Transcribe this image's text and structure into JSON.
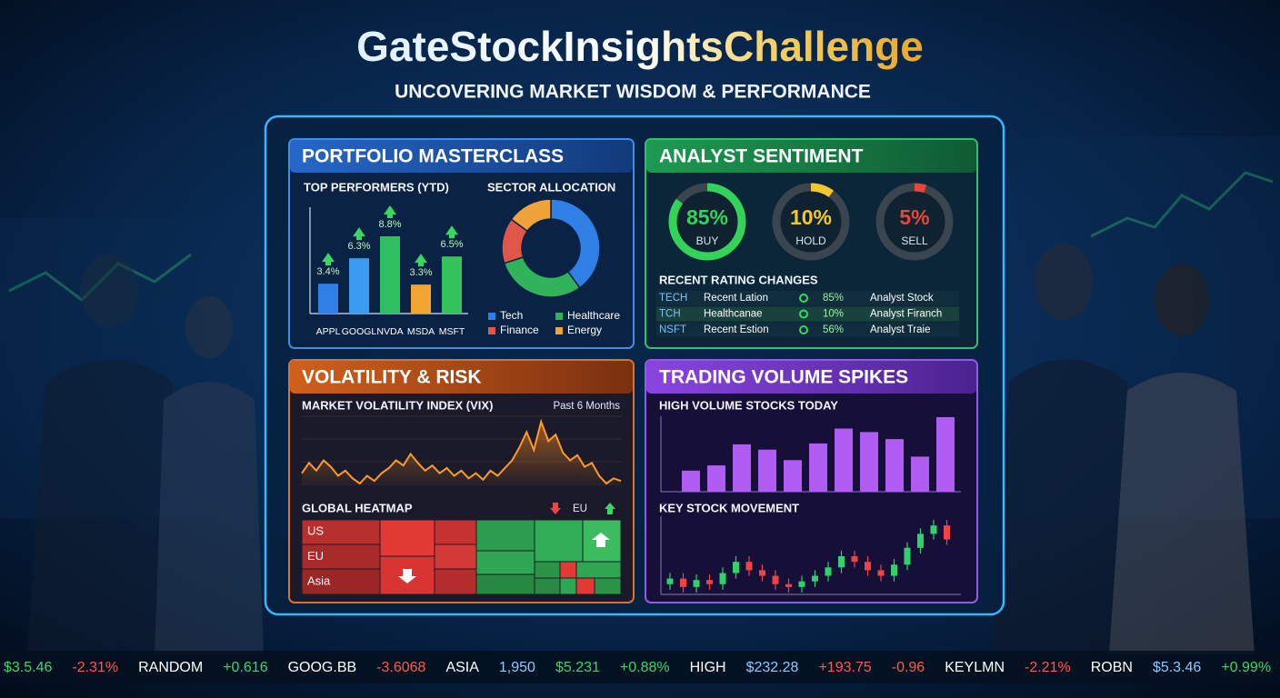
{
  "header": {
    "title": "GateStockInsightsChallenge",
    "subtitle": "UNCOVERING MARKET WISDOM & PERFORMANCE"
  },
  "portfolio": {
    "title": "PORTFOLIO MASTERCLASS",
    "performers": {
      "type": "bar",
      "title": "TOP PERFORMERS (YTD)",
      "categories": [
        "APPL",
        "GOOGL",
        "NVDA",
        "MSDA",
        "MSFT"
      ],
      "values": [
        3.4,
        6.3,
        8.8,
        3.3,
        6.5
      ],
      "value_labels": [
        "3.4%",
        "6.3%",
        "8.8%",
        "3.3%",
        "6.5%"
      ],
      "colors": [
        "#2f7fe6",
        "#3a9cf0",
        "#2fbf62",
        "#f2a531",
        "#35c45c"
      ]
    },
    "sectors": {
      "type": "pie",
      "title": "SECTOR ALLOCATION",
      "categories": [
        "Tech",
        "Healthcare",
        "Finance",
        "Energy"
      ],
      "values": [
        40,
        30,
        15,
        15
      ],
      "colors": [
        "#2f7fe6",
        "#31b35a",
        "#e0574a",
        "#f0a33a"
      ]
    }
  },
  "sentiment": {
    "title": "ANALYST SENTIMENT",
    "gauges": {
      "categories": [
        "BUY",
        "HOLD",
        "SELL"
      ],
      "values": [
        85,
        10,
        5
      ],
      "value_labels": [
        "85%",
        "10%",
        "5%"
      ],
      "colors": [
        "#33d35a",
        "#f2c832",
        "#e5483a"
      ]
    },
    "ratings": {
      "title": "RECENT RATING CHANGES",
      "rows": [
        [
          "TECH",
          "Recent Lation",
          "85%",
          "Analyst Stock"
        ],
        [
          "TCH",
          "Healthcanae",
          "10%",
          "Analyst Firanch"
        ],
        [
          "NSFT",
          "Recent Estion",
          "56%",
          "Analyst Traie"
        ]
      ]
    }
  },
  "volatility": {
    "title": "VOLATILITY & RISK",
    "vix": {
      "type": "line",
      "title": "MARKET VOLATILITY INDEX (VIX)",
      "period": "Past 6 Months",
      "color": "#ff9a2a",
      "values": [
        20,
        28,
        22,
        30,
        25,
        18,
        22,
        16,
        12,
        18,
        14,
        20,
        24,
        30,
        26,
        35,
        28,
        22,
        26,
        20,
        24,
        18,
        22,
        16,
        20,
        15,
        22,
        18,
        24,
        30,
        40,
        52,
        38,
        60,
        45,
        50,
        36,
        30,
        34,
        25,
        28,
        18,
        12,
        16,
        14
      ]
    },
    "heatmap": {
      "title": "GLOBAL HEATMAP",
      "legend_label": "EU",
      "regions": [
        "US",
        "EU",
        "Asia"
      ]
    }
  },
  "trading": {
    "title": "TRADING VOLUME SPIKES",
    "volume": {
      "type": "bar",
      "title": "HIGH VOLUME STOCKS TODAY",
      "color": "#b05cf2",
      "values": [
        24,
        30,
        54,
        48,
        36,
        55,
        72,
        68,
        60,
        40,
        85
      ]
    },
    "movement": {
      "type": "candlestick",
      "title": "KEY STOCK MOVEMENT",
      "open": [
        30,
        34,
        28,
        33,
        30,
        38,
        46,
        40,
        36,
        30,
        28,
        32,
        36,
        42,
        50,
        46,
        40,
        36,
        44,
        56,
        66,
        72
      ],
      "close": [
        34,
        28,
        33,
        30,
        38,
        46,
        40,
        36,
        30,
        28,
        32,
        36,
        42,
        50,
        46,
        40,
        36,
        44,
        56,
        66,
        72,
        62
      ],
      "high": [
        38,
        38,
        37,
        37,
        42,
        50,
        50,
        44,
        40,
        34,
        36,
        40,
        46,
        54,
        54,
        50,
        44,
        48,
        60,
        70,
        76,
        76
      ],
      "low": [
        26,
        24,
        24,
        26,
        26,
        34,
        36,
        32,
        26,
        24,
        24,
        28,
        32,
        38,
        42,
        36,
        32,
        32,
        40,
        52,
        62,
        58
      ],
      "up_color": "#2fd36a",
      "down_color": "#ef4444"
    }
  },
  "ticker": {
    "items": [
      {
        "text": "$3.5.46",
        "color": "#3fd36a"
      },
      {
        "text": "-2.31%",
        "color": "#ff5a4a"
      },
      {
        "text": "RANDOM",
        "color": "#ffffff"
      },
      {
        "text": "+0.616",
        "color": "#3fd36a"
      },
      {
        "text": "GOOG.BB",
        "color": "#ffffff"
      },
      {
        "text": "-3.6068",
        "color": "#ff5a4a"
      },
      {
        "text": "ASIA",
        "color": "#ffffff"
      },
      {
        "text": "1,950",
        "color": "#8fc8ff"
      },
      {
        "text": "$5.231",
        "color": "#3fd36a"
      },
      {
        "text": "+0.88%",
        "color": "#3fd36a"
      },
      {
        "text": "HIGH",
        "color": "#ffffff"
      },
      {
        "text": "$232.28",
        "color": "#8fc8ff"
      },
      {
        "text": "+193.75",
        "color": "#ff5a4a"
      },
      {
        "text": "-0.96",
        "color": "#ff5a4a"
      },
      {
        "text": "KEYLMN",
        "color": "#ffffff"
      },
      {
        "text": "-2.21%",
        "color": "#ff5a4a"
      },
      {
        "text": "ROBN",
        "color": "#ffffff"
      },
      {
        "text": "$5.3.46",
        "color": "#8fc8ff"
      },
      {
        "text": "+0.99%",
        "color": "#3fd36a"
      }
    ]
  }
}
